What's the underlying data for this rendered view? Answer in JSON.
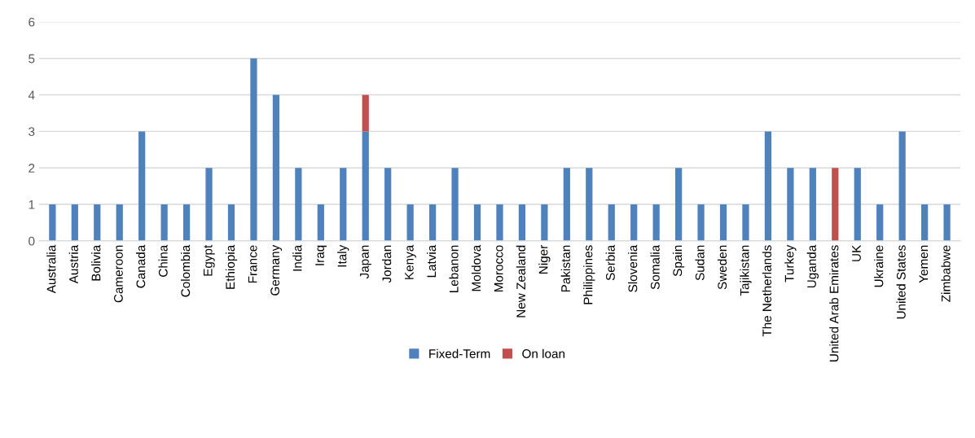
{
  "chart_data": {
    "type": "bar",
    "stacked": true,
    "categories": [
      "Australia",
      "Austria",
      "Bolivia",
      "Cameroon",
      "Canada",
      "China",
      "Colombia",
      "Egypt",
      "Ethiopia",
      "France",
      "Germany",
      "India",
      "Iraq",
      "Italy",
      "Japan",
      "Jordan",
      "Kenya",
      "Latvia",
      "Lebanon",
      "Moldova",
      "Morocco",
      "New Zealand",
      "Niger",
      "Pakistan",
      "Philippines",
      "Serbia",
      "Slovenia",
      "Somalia",
      "Spain",
      "Sudan",
      "Sweden",
      "Tajikistan",
      "The Netherlands",
      "Turkey",
      "Uganda",
      "United Arab Emirates",
      "UK",
      "Ukraine",
      "United States",
      "Yemen",
      "Zimbabwe"
    ],
    "series": [
      {
        "name": "Fixed-Term",
        "color": "#4f81bd",
        "values": [
          1,
          1,
          1,
          1,
          3,
          1,
          1,
          2,
          1,
          5,
          4,
          2,
          1,
          2,
          3,
          2,
          1,
          1,
          2,
          1,
          1,
          1,
          1,
          2,
          2,
          1,
          1,
          1,
          2,
          1,
          1,
          1,
          3,
          2,
          2,
          0,
          2,
          1,
          3,
          1,
          1
        ]
      },
      {
        "name": "On loan",
        "color": "#c0504d",
        "values": [
          0,
          0,
          0,
          0,
          0,
          0,
          0,
          0,
          0,
          0,
          0,
          0,
          0,
          0,
          1,
          0,
          0,
          0,
          0,
          0,
          0,
          0,
          0,
          0,
          0,
          0,
          0,
          0,
          0,
          0,
          0,
          0,
          0,
          0,
          0,
          2,
          0,
          0,
          0,
          0,
          0
        ]
      }
    ],
    "ylim": [
      0,
      6
    ],
    "yticks": [
      0,
      1,
      2,
      3,
      4,
      5,
      6
    ],
    "grid": "y",
    "legend": "bottom"
  }
}
